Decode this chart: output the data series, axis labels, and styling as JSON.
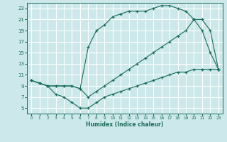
{
  "xlabel": "Humidex (Indice chaleur)",
  "bg_color": "#cce8ea",
  "grid_color": "#ffffff",
  "line_color": "#1a6b5a",
  "xlim": [
    -0.5,
    23.5
  ],
  "ylim": [
    4,
    24
  ],
  "xticks": [
    0,
    1,
    2,
    3,
    4,
    5,
    6,
    7,
    8,
    9,
    10,
    11,
    12,
    13,
    14,
    15,
    16,
    17,
    18,
    19,
    20,
    21,
    22,
    23
  ],
  "yticks": [
    5,
    7,
    9,
    11,
    13,
    15,
    17,
    19,
    21,
    23
  ],
  "curve_top_x": [
    0,
    1,
    2,
    3,
    4,
    5,
    6,
    7,
    8,
    9,
    10,
    11,
    12,
    13,
    14,
    15,
    16,
    17,
    18,
    19,
    20,
    21,
    22,
    23
  ],
  "curve_top_y": [
    10,
    9.5,
    9,
    9,
    9,
    9,
    8.5,
    16,
    19,
    20,
    21.5,
    22,
    22.5,
    22.5,
    22.5,
    23,
    23.5,
    23.5,
    23,
    22.5,
    21,
    19,
    15,
    12
  ],
  "curve_mid_x": [
    0,
    1,
    2,
    3,
    4,
    5,
    6,
    7,
    8,
    9,
    10,
    11,
    12,
    13,
    14,
    15,
    16,
    17,
    18,
    19,
    20,
    21,
    22,
    23
  ],
  "curve_mid_y": [
    10,
    9.5,
    9,
    9,
    9,
    9,
    8.5,
    7,
    8,
    9,
    10,
    11,
    12,
    13,
    14,
    15,
    16,
    17,
    18,
    19,
    21,
    21,
    19,
    12
  ],
  "curve_bot_x": [
    0,
    1,
    2,
    3,
    4,
    5,
    6,
    7,
    8,
    9,
    10,
    11,
    12,
    13,
    14,
    15,
    16,
    17,
    18,
    19,
    20,
    21,
    22,
    23
  ],
  "curve_bot_y": [
    10,
    9.5,
    9,
    7.5,
    7,
    6,
    5,
    5,
    6,
    7,
    7.5,
    8,
    8.5,
    9,
    9.5,
    10,
    10.5,
    11,
    11.5,
    11.5,
    12,
    12,
    12,
    12
  ]
}
